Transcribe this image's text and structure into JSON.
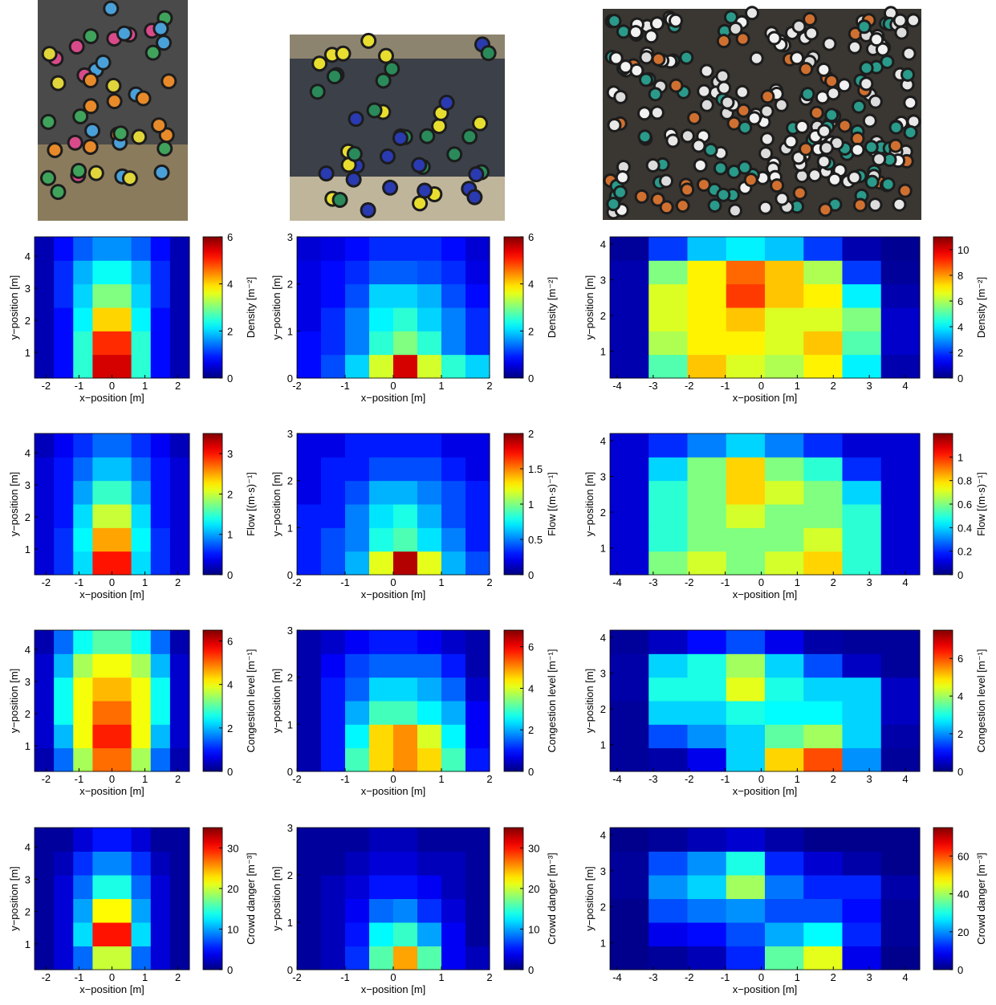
{
  "chart_data": [
    {
      "type": "heatmap",
      "colormap": "jet",
      "xlabel": "x−position [m]",
      "ylabel": "y−position [m]",
      "colorbar_label": "Density [m⁻²]",
      "xlim": [
        -2.35,
        2.35
      ],
      "ylim": [
        0.2,
        4.6
      ],
      "xticks": [
        -2,
        -1,
        0,
        1,
        2
      ],
      "yticks": [
        1,
        2,
        3,
        4
      ],
      "clim": [
        0,
        6
      ],
      "cticks": [
        0,
        2,
        4,
        6
      ],
      "z": [
        [
          0.3,
          0.8,
          2.5,
          5.5,
          5.5,
          2.5,
          0.8,
          0.3
        ],
        [
          0.3,
          0.8,
          2.5,
          5,
          5,
          2.5,
          0.8,
          0.3
        ],
        [
          0.3,
          0.8,
          2.2,
          4,
          4,
          2.2,
          0.8,
          0.3
        ],
        [
          0.3,
          1,
          2,
          3,
          3,
          2,
          1,
          0.3
        ],
        [
          0.3,
          1,
          1.8,
          2.3,
          2.3,
          1.8,
          1,
          0.3
        ],
        [
          0.3,
          0.8,
          1.3,
          1.6,
          1.6,
          1.3,
          0.8,
          0.3
        ]
      ]
    },
    {
      "type": "heatmap",
      "colormap": "jet",
      "xlabel": "x−position [m]",
      "ylabel": "y−position [m]",
      "colorbar_label": "Density [m⁻²]",
      "xlim": [
        -2,
        2
      ],
      "ylim": [
        0,
        3
      ],
      "xticks": [
        -2,
        -1,
        0,
        1,
        2
      ],
      "yticks": [
        0,
        1,
        2,
        3
      ],
      "clim": [
        0,
        6
      ],
      "cticks": [
        0,
        2,
        4,
        6
      ],
      "z": [
        [
          0.8,
          1.2,
          2,
          3.5,
          5.5,
          3.5,
          2.5,
          2
        ],
        [
          0.8,
          1,
          1.5,
          2.5,
          3,
          2.5,
          1.5,
          1
        ],
        [
          0.6,
          1,
          1.5,
          2.2,
          2.5,
          2,
          1.5,
          1
        ],
        [
          0.6,
          0.8,
          1.2,
          2,
          2,
          1.8,
          1.2,
          0.8
        ],
        [
          0.6,
          0.8,
          1,
          1.3,
          1.3,
          1.2,
          1,
          0.6
        ],
        [
          0.5,
          0.6,
          0.8,
          1,
          1,
          1,
          0.8,
          0.5
        ]
      ]
    },
    {
      "type": "heatmap",
      "colormap": "jet",
      "xlabel": "x−position [m]",
      "ylabel": "y−position [m]",
      "colorbar_label": "Density [m⁻²]",
      "xlim": [
        -4.2,
        4.4
      ],
      "ylim": [
        0.25,
        4.2
      ],
      "xticks": [
        -4,
        -3,
        -2,
        -1,
        0,
        1,
        2,
        3,
        4
      ],
      "yticks": [
        1,
        2,
        3,
        4
      ],
      "clim": [
        0,
        11
      ],
      "cticks": [
        0,
        2,
        4,
        6,
        8,
        10
      ],
      "z": [
        [
          0.5,
          5,
          7.5,
          6.5,
          6,
          7,
          4,
          0.5
        ],
        [
          0.5,
          6,
          7,
          7,
          6.5,
          7.5,
          5,
          0.8
        ],
        [
          0.5,
          6.5,
          7,
          7.5,
          6.5,
          6.5,
          5.5,
          0.8
        ],
        [
          0.5,
          6.5,
          7,
          9,
          7.5,
          7,
          4,
          0.5
        ],
        [
          0.5,
          5.5,
          7,
          8.5,
          7.5,
          6,
          2,
          0.3
        ],
        [
          0.3,
          2,
          3.5,
          4,
          3.5,
          2,
          0.5,
          0.2
        ]
      ]
    },
    {
      "type": "heatmap",
      "colormap": "jet",
      "xlabel": "x−position [m]",
      "ylabel": "y−position [m]",
      "colorbar_label": "Flow [(m·s)⁻¹]",
      "xlim": [
        -2.35,
        2.35
      ],
      "ylim": [
        0.2,
        4.6
      ],
      "xticks": [
        -2,
        -1,
        0,
        1,
        2
      ],
      "yticks": [
        1,
        2,
        3,
        4
      ],
      "clim": [
        0,
        3.5
      ],
      "cticks": [
        0,
        1,
        2,
        3
      ],
      "z": [
        [
          0.3,
          0.6,
          1.2,
          3,
          3,
          1.2,
          0.6,
          0.3
        ],
        [
          0.3,
          0.6,
          1.3,
          2.5,
          2.5,
          1.3,
          0.6,
          0.3
        ],
        [
          0.3,
          0.5,
          1.2,
          2,
          2,
          1.2,
          0.5,
          0.3
        ],
        [
          0.3,
          0.5,
          1,
          1.5,
          1.5,
          1,
          0.5,
          0.3
        ],
        [
          0.3,
          0.5,
          0.8,
          1.1,
          1.1,
          0.8,
          0.5,
          0.3
        ],
        [
          0.2,
          0.4,
          0.6,
          0.8,
          0.8,
          0.6,
          0.4,
          0.2
        ]
      ]
    },
    {
      "type": "heatmap",
      "colormap": "jet",
      "xlabel": "x−position [m]",
      "ylabel": "y−position [m]",
      "colorbar_label": "Flow [(m·s)⁻¹]",
      "xlim": [
        -2,
        2
      ],
      "ylim": [
        0,
        3
      ],
      "xticks": [
        -2,
        -1,
        0,
        1,
        2
      ],
      "yticks": [
        0,
        1,
        2,
        3
      ],
      "clim": [
        0,
        2
      ],
      "cticks": [
        0,
        0.5,
        1,
        1.5,
        2
      ],
      "z": [
        [
          0.3,
          0.4,
          0.6,
          1.2,
          1.9,
          1.2,
          0.6,
          0.4
        ],
        [
          0.3,
          0.4,
          0.5,
          0.8,
          0.9,
          0.7,
          0.5,
          0.3
        ],
        [
          0.3,
          0.3,
          0.5,
          0.7,
          0.8,
          0.6,
          0.4,
          0.3
        ],
        [
          0.2,
          0.3,
          0.4,
          0.6,
          0.6,
          0.5,
          0.4,
          0.3
        ],
        [
          0.2,
          0.3,
          0.3,
          0.4,
          0.4,
          0.4,
          0.3,
          0.2
        ],
        [
          0.2,
          0.2,
          0.3,
          0.3,
          0.3,
          0.3,
          0.2,
          0.2
        ]
      ]
    },
    {
      "type": "heatmap",
      "colormap": "jet",
      "xlabel": "x−position [m]",
      "ylabel": "y−position [m]",
      "colorbar_label": "Flow [(m·s)⁻¹]",
      "xlim": [
        -4.2,
        4.4
      ],
      "ylim": [
        0.25,
        4.2
      ],
      "xticks": [
        -4,
        -3,
        -2,
        -1,
        0,
        1,
        2,
        3,
        4
      ],
      "yticks": [
        1,
        2,
        3,
        4
      ],
      "clim": [
        0,
        1.2
      ],
      "cticks": [
        0,
        0.2,
        0.4,
        0.6,
        0.8,
        1
      ],
      "z": [
        [
          0.1,
          0.6,
          0.7,
          0.6,
          0.7,
          0.8,
          0.5,
          0.1
        ],
        [
          0.1,
          0.5,
          0.6,
          0.6,
          0.6,
          0.7,
          0.5,
          0.1
        ],
        [
          0.1,
          0.5,
          0.6,
          0.7,
          0.6,
          0.6,
          0.5,
          0.1
        ],
        [
          0.1,
          0.5,
          0.6,
          0.8,
          0.7,
          0.6,
          0.4,
          0.1
        ],
        [
          0.1,
          0.4,
          0.6,
          0.8,
          0.6,
          0.5,
          0.2,
          0.1
        ],
        [
          0.1,
          0.2,
          0.3,
          0.4,
          0.3,
          0.2,
          0.1,
          0.1
        ]
      ]
    },
    {
      "type": "heatmap",
      "colormap": "jet",
      "xlabel": "x−position [m]",
      "ylabel": "y−position [m]",
      "colorbar_label": "Congestion level [m⁻¹]",
      "xlim": [
        -2.35,
        2.35
      ],
      "ylim": [
        0.2,
        4.6
      ],
      "xticks": [
        -2,
        -1,
        0,
        1,
        2
      ],
      "yticks": [
        1,
        2,
        3,
        4
      ],
      "clim": [
        0,
        6.5
      ],
      "cticks": [
        0,
        2,
        4,
        6
      ],
      "z": [
        [
          0.3,
          1.5,
          3.5,
          5,
          5,
          3.5,
          1.5,
          0.3
        ],
        [
          0.5,
          2,
          4,
          5.5,
          5.5,
          4,
          2,
          0.5
        ],
        [
          0.5,
          2.5,
          4,
          5,
          5,
          4,
          2.5,
          0.5
        ],
        [
          0.5,
          2.5,
          4,
          4.5,
          4.5,
          4,
          2.5,
          0.5
        ],
        [
          0.5,
          2,
          3.5,
          4,
          4,
          3.5,
          2,
          0.5
        ],
        [
          0.3,
          1.5,
          2.5,
          3,
          3,
          2.5,
          1.5,
          0.3
        ]
      ]
    },
    {
      "type": "heatmap",
      "colormap": "jet",
      "xlabel": "x−position [m]",
      "ylabel": "y−position [m]",
      "colorbar_label": "Congestion level [m⁻¹]",
      "xlim": [
        -2,
        2
      ],
      "ylim": [
        0,
        3
      ],
      "xticks": [
        -2,
        -1,
        0,
        1,
        2
      ],
      "yticks": [
        0,
        1,
        2,
        3
      ],
      "clim": [
        0,
        6.8
      ],
      "cticks": [
        0,
        2,
        4,
        6
      ],
      "z": [
        [
          0.3,
          1,
          3,
          4.5,
          5,
          4.5,
          3,
          1
        ],
        [
          0.3,
          1,
          2.5,
          4.5,
          5,
          4,
          2.5,
          0.8
        ],
        [
          0.3,
          1,
          2,
          3,
          3,
          2.5,
          2,
          0.8
        ],
        [
          0.3,
          1,
          1.5,
          2.3,
          2.3,
          2,
          1.5,
          0.5
        ],
        [
          0.3,
          0.8,
          1.3,
          1.5,
          1.5,
          1.5,
          1,
          0.3
        ],
        [
          0.3,
          0.5,
          0.8,
          1,
          1,
          0.8,
          0.5,
          0.3
        ]
      ]
    },
    {
      "type": "heatmap",
      "colormap": "jet",
      "xlabel": "x−position [m]",
      "ylabel": "y−position [m]",
      "colorbar_label": "Congestion level [m⁻¹]",
      "xlim": [
        -4.2,
        4.4
      ],
      "ylim": [
        0.25,
        4.2
      ],
      "xticks": [
        -4,
        -3,
        -2,
        -1,
        0,
        1,
        2,
        3,
        4
      ],
      "yticks": [
        1,
        2,
        3,
        4
      ],
      "clim": [
        0,
        7.5
      ],
      "cticks": [
        0,
        2,
        4,
        6
      ],
      "z": [
        [
          0.2,
          0.3,
          0.8,
          2.5,
          5,
          6,
          2,
          0.2
        ],
        [
          0.2,
          1.5,
          2,
          2.5,
          3.5,
          4,
          2.5,
          0.3
        ],
        [
          0.2,
          2.5,
          2.5,
          3,
          2.8,
          2.8,
          2.5,
          0.5
        ],
        [
          0.3,
          3,
          3,
          4.5,
          3,
          2.5,
          2.5,
          0.5
        ],
        [
          0.3,
          2.5,
          3,
          4,
          2.5,
          1.5,
          0.5,
          0.2
        ],
        [
          0.2,
          0.5,
          1,
          1.5,
          0.8,
          0.3,
          0.2,
          0.2
        ]
      ]
    },
    {
      "type": "heatmap",
      "colormap": "jet",
      "xlabel": "x−position [m]",
      "ylabel": "y−position [m]",
      "colorbar_label": "Crowd danger [m⁻³]",
      "xlim": [
        -2.35,
        2.35
      ],
      "ylim": [
        0.2,
        4.6
      ],
      "xticks": [
        -2,
        -1,
        0,
        1,
        2
      ],
      "yticks": [
        1,
        2,
        3,
        4
      ],
      "clim": [
        0,
        35
      ],
      "cticks": [
        0,
        10,
        20,
        30
      ],
      "z": [
        [
          1,
          3,
          8,
          20,
          20,
          8,
          3,
          1
        ],
        [
          1,
          3,
          12,
          30,
          30,
          12,
          3,
          1
        ],
        [
          1,
          3,
          10,
          22,
          22,
          10,
          3,
          1
        ],
        [
          1,
          3,
          8,
          14,
          14,
          8,
          3,
          1
        ],
        [
          1,
          2,
          6,
          9,
          9,
          6,
          2,
          1
        ],
        [
          1,
          1,
          3,
          5,
          5,
          3,
          1,
          1
        ]
      ]
    },
    {
      "type": "heatmap",
      "colormap": "jet",
      "xlabel": "x−position [m]",
      "ylabel": "y−position [m]",
      "colorbar_label": "Crowd danger [m⁻³]",
      "xlim": [
        -2,
        2
      ],
      "ylim": [
        0,
        3
      ],
      "xticks": [
        -2,
        -1,
        0,
        1,
        2
      ],
      "yticks": [
        0,
        1,
        2,
        3
      ],
      "clim": [
        0,
        35
      ],
      "cticks": [
        0,
        10,
        20,
        30
      ],
      "z": [
        [
          1,
          2,
          6,
          16,
          25,
          16,
          4,
          2
        ],
        [
          1,
          2,
          5,
          13,
          15,
          10,
          4,
          1
        ],
        [
          1,
          2,
          4,
          8,
          9,
          6,
          3,
          1
        ],
        [
          1,
          2,
          3,
          5,
          5,
          4,
          2,
          1
        ],
        [
          1,
          1,
          2,
          3,
          3,
          2,
          2,
          1
        ],
        [
          1,
          1,
          1,
          2,
          2,
          1,
          1,
          1
        ]
      ]
    },
    {
      "type": "heatmap",
      "colormap": "jet",
      "xlabel": "x−position [m]",
      "ylabel": "y−position [m]",
      "colorbar_label": "Crowd danger [m⁻³]",
      "xlim": [
        -4.2,
        4.4
      ],
      "ylim": [
        0.25,
        4.2
      ],
      "xticks": [
        -4,
        -3,
        -2,
        -1,
        0,
        1,
        2,
        3,
        4
      ],
      "yticks": [
        1,
        2,
        3,
        4
      ],
      "clim": [
        0,
        75
      ],
      "cticks": [
        0,
        20,
        40,
        60
      ],
      "z": [
        [
          1,
          2,
          4,
          12,
          35,
          45,
          8,
          1
        ],
        [
          1,
          8,
          10,
          15,
          22,
          28,
          12,
          2
        ],
        [
          1,
          15,
          18,
          20,
          15,
          15,
          10,
          2
        ],
        [
          2,
          20,
          25,
          40,
          18,
          12,
          12,
          3
        ],
        [
          2,
          15,
          20,
          30,
          12,
          6,
          3,
          1
        ],
        [
          1,
          2,
          4,
          6,
          3,
          1,
          1,
          1
        ]
      ]
    }
  ]
}
